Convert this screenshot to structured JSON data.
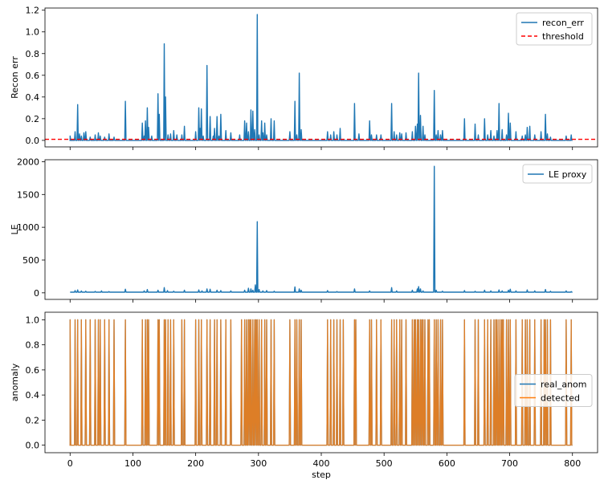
{
  "chart_data": [
    {
      "type": "line",
      "ylabel": "Recon err",
      "xlabel": "",
      "xlim": [
        -40,
        840
      ],
      "ylim": [
        -0.06,
        1.22
      ],
      "yticks": [
        0.0,
        0.2,
        0.4,
        0.6,
        0.8,
        1.0,
        1.2
      ],
      "ytick_labels": [
        "0.0",
        "0.2",
        "0.4",
        "0.6",
        "0.8",
        "1.0",
        "1.2"
      ],
      "legend_position": "top-right",
      "series": [
        {
          "name": "recon_err",
          "color": "#1f77b4",
          "style": "solid",
          "baseline": 0.0,
          "spikes": [
            [
              0,
              0.04
            ],
            [
              8,
              0.08
            ],
            [
              12,
              0.33
            ],
            [
              15,
              0.06
            ],
            [
              18,
              0.04
            ],
            [
              22,
              0.07
            ],
            [
              25,
              0.08
            ],
            [
              32,
              0.03
            ],
            [
              40,
              0.05
            ],
            [
              45,
              0.07
            ],
            [
              48,
              0.04
            ],
            [
              55,
              0.03
            ],
            [
              62,
              0.06
            ],
            [
              70,
              0.03
            ],
            [
              88,
              0.36
            ],
            [
              115,
              0.16
            ],
            [
              118,
              0.04
            ],
            [
              120,
              0.18
            ],
            [
              123,
              0.3
            ],
            [
              125,
              0.12
            ],
            [
              130,
              0.04
            ],
            [
              140,
              0.43
            ],
            [
              142,
              0.24
            ],
            [
              150,
              0.89
            ],
            [
              152,
              0.4
            ],
            [
              156,
              0.05
            ],
            [
              160,
              0.06
            ],
            [
              165,
              0.09
            ],
            [
              170,
              0.05
            ],
            [
              178,
              0.05
            ],
            [
              182,
              0.13
            ],
            [
              200,
              0.08
            ],
            [
              205,
              0.3
            ],
            [
              207,
              0.11
            ],
            [
              209,
              0.29
            ],
            [
              212,
              0.04
            ],
            [
              218,
              0.69
            ],
            [
              223,
              0.22
            ],
            [
              228,
              0.04
            ],
            [
              230,
              0.11
            ],
            [
              234,
              0.22
            ],
            [
              237,
              0.04
            ],
            [
              240,
              0.24
            ],
            [
              248,
              0.09
            ],
            [
              256,
              0.07
            ],
            [
              270,
              0.05
            ],
            [
              278,
              0.18
            ],
            [
              281,
              0.16
            ],
            [
              284,
              0.08
            ],
            [
              288,
              0.28
            ],
            [
              291,
              0.27
            ],
            [
              294,
              0.1
            ],
            [
              298,
              1.16
            ],
            [
              301,
              0.05
            ],
            [
              305,
              0.18
            ],
            [
              307,
              0.07
            ],
            [
              310,
              0.16
            ],
            [
              313,
              0.05
            ],
            [
              320,
              0.2
            ],
            [
              325,
              0.18
            ],
            [
              350,
              0.08
            ],
            [
              358,
              0.36
            ],
            [
              361,
              0.05
            ],
            [
              365,
              0.62
            ],
            [
              368,
              0.1
            ],
            [
              410,
              0.08
            ],
            [
              415,
              0.05
            ],
            [
              420,
              0.08
            ],
            [
              425,
              0.05
            ],
            [
              430,
              0.11
            ],
            [
              453,
              0.34
            ],
            [
              460,
              0.06
            ],
            [
              477,
              0.18
            ],
            [
              480,
              0.05
            ],
            [
              488,
              0.05
            ],
            [
              495,
              0.05
            ],
            [
              512,
              0.34
            ],
            [
              516,
              0.08
            ],
            [
              520,
              0.05
            ],
            [
              525,
              0.07
            ],
            [
              528,
              0.06
            ],
            [
              535,
              0.07
            ],
            [
              545,
              0.08
            ],
            [
              550,
              0.13
            ],
            [
              553,
              0.15
            ],
            [
              555,
              0.62
            ],
            [
              558,
              0.23
            ],
            [
              562,
              0.13
            ],
            [
              565,
              0.05
            ],
            [
              580,
              0.46
            ],
            [
              583,
              0.05
            ],
            [
              586,
              0.09
            ],
            [
              590,
              0.05
            ],
            [
              593,
              0.09
            ],
            [
              628,
              0.2
            ],
            [
              645,
              0.15
            ],
            [
              650,
              0.05
            ],
            [
              660,
              0.2
            ],
            [
              665,
              0.05
            ],
            [
              670,
              0.09
            ],
            [
              675,
              0.04
            ],
            [
              680,
              0.09
            ],
            [
              683,
              0.34
            ],
            [
              688,
              0.1
            ],
            [
              695,
              0.05
            ],
            [
              698,
              0.25
            ],
            [
              701,
              0.16
            ],
            [
              710,
              0.08
            ],
            [
              720,
              0.04
            ],
            [
              725,
              0.05
            ],
            [
              728,
              0.12
            ],
            [
              732,
              0.13
            ],
            [
              740,
              0.05
            ],
            [
              750,
              0.08
            ],
            [
              757,
              0.24
            ],
            [
              760,
              0.06
            ],
            [
              765,
              0.03
            ],
            [
              790,
              0.04
            ],
            [
              798,
              0.05
            ]
          ]
        },
        {
          "name": "threshold",
          "color": "#ff0000",
          "style": "dashed",
          "value": 0.01
        }
      ]
    },
    {
      "type": "line",
      "ylabel": "LE",
      "xlabel": "",
      "xlim": [
        -40,
        840
      ],
      "ylim": [
        -100,
        2030
      ],
      "yticks": [
        0,
        500,
        1000,
        1500,
        2000
      ],
      "ytick_labels": [
        "0",
        "500",
        "1000",
        "1500",
        "2000"
      ],
      "legend_position": "top-right",
      "series": [
        {
          "name": "LE proxy",
          "color": "#1f77b4",
          "style": "solid",
          "baseline": 10,
          "spikes": [
            [
              8,
              35
            ],
            [
              12,
              45
            ],
            [
              18,
              28
            ],
            [
              25,
              25
            ],
            [
              40,
              22
            ],
            [
              50,
              30
            ],
            [
              62,
              20
            ],
            [
              88,
              55
            ],
            [
              118,
              30
            ],
            [
              123,
              50
            ],
            [
              140,
              40
            ],
            [
              150,
              80
            ],
            [
              155,
              35
            ],
            [
              165,
              25
            ],
            [
              182,
              40
            ],
            [
              205,
              45
            ],
            [
              210,
              30
            ],
            [
              218,
              60
            ],
            [
              223,
              55
            ],
            [
              234,
              40
            ],
            [
              240,
              35
            ],
            [
              256,
              30
            ],
            [
              278,
              40
            ],
            [
              284,
              70
            ],
            [
              288,
              60
            ],
            [
              291,
              40
            ],
            [
              295,
              120
            ],
            [
              298,
              1085
            ],
            [
              301,
              50
            ],
            [
              307,
              30
            ],
            [
              313,
              35
            ],
            [
              325,
              25
            ],
            [
              358,
              90
            ],
            [
              365,
              60
            ],
            [
              368,
              40
            ],
            [
              410,
              35
            ],
            [
              425,
              20
            ],
            [
              453,
              60
            ],
            [
              477,
              30
            ],
            [
              512,
              80
            ],
            [
              520,
              30
            ],
            [
              545,
              40
            ],
            [
              553,
              60
            ],
            [
              555,
              95
            ],
            [
              558,
              60
            ],
            [
              562,
              30
            ],
            [
              580,
              1930
            ],
            [
              583,
              40
            ],
            [
              593,
              25
            ],
            [
              628,
              35
            ],
            [
              645,
              25
            ],
            [
              660,
              40
            ],
            [
              670,
              30
            ],
            [
              683,
              45
            ],
            [
              688,
              30
            ],
            [
              698,
              40
            ],
            [
              701,
              55
            ],
            [
              710,
              30
            ],
            [
              728,
              45
            ],
            [
              740,
              30
            ],
            [
              757,
              50
            ],
            [
              765,
              25
            ],
            [
              790,
              30
            ],
            [
              798,
              20
            ]
          ]
        }
      ]
    },
    {
      "type": "line",
      "ylabel": "anomaly",
      "xlabel": "step",
      "xlim": [
        -40,
        840
      ],
      "ylim": [
        -0.06,
        1.06
      ],
      "yticks": [
        0.0,
        0.2,
        0.4,
        0.6,
        0.8,
        1.0
      ],
      "ytick_labels": [
        "0.0",
        "0.2",
        "0.4",
        "0.6",
        "0.8",
        "1.0"
      ],
      "xticks": [
        0,
        100,
        200,
        300,
        400,
        500,
        600,
        700,
        800
      ],
      "xtick_labels": [
        "0",
        "100",
        "200",
        "300",
        "400",
        "500",
        "600",
        "700",
        "800"
      ],
      "legend_position": "center-right",
      "series": [
        {
          "name": "real_anom",
          "color": "#1f77b4",
          "style": "solid",
          "high_steps": [
            0,
            8,
            12,
            18,
            25,
            32,
            40,
            45,
            48,
            55,
            62,
            70,
            88,
            115,
            120,
            123,
            125,
            140,
            142,
            150,
            152,
            156,
            160,
            165,
            178,
            182,
            200,
            205,
            209,
            218,
            223,
            230,
            234,
            240,
            248,
            256,
            273,
            278,
            281,
            284,
            286,
            288,
            291,
            294,
            296,
            298,
            301,
            305,
            310,
            313,
            320,
            325,
            350,
            358,
            361,
            365,
            368,
            410,
            415,
            420,
            425,
            430,
            435,
            453,
            455,
            477,
            480,
            488,
            495,
            512,
            516,
            520,
            525,
            528,
            535,
            545,
            548,
            550,
            553,
            555,
            558,
            560,
            562,
            565,
            570,
            572,
            580,
            583,
            586,
            590,
            593,
            628,
            645,
            650,
            660,
            665,
            670,
            675,
            678,
            680,
            683,
            686,
            688,
            690,
            695,
            698,
            701,
            710,
            720,
            725,
            728,
            732,
            740,
            750,
            755,
            757,
            760,
            765,
            790,
            798
          ]
        },
        {
          "name": "detected",
          "color": "#ff7f0e",
          "style": "solid",
          "high_steps": [
            0,
            8,
            12,
            18,
            25,
            32,
            40,
            45,
            48,
            55,
            62,
            70,
            88,
            115,
            120,
            123,
            125,
            140,
            142,
            150,
            152,
            156,
            160,
            165,
            178,
            182,
            200,
            205,
            209,
            218,
            223,
            230,
            234,
            240,
            248,
            256,
            273,
            278,
            281,
            284,
            286,
            288,
            291,
            294,
            296,
            298,
            301,
            305,
            310,
            313,
            320,
            325,
            350,
            358,
            361,
            365,
            368,
            410,
            415,
            420,
            425,
            430,
            435,
            453,
            455,
            477,
            480,
            488,
            495,
            512,
            516,
            520,
            525,
            528,
            535,
            545,
            548,
            550,
            553,
            555,
            558,
            560,
            562,
            565,
            570,
            572,
            580,
            583,
            586,
            590,
            593,
            628,
            645,
            650,
            660,
            665,
            670,
            675,
            678,
            680,
            683,
            686,
            688,
            690,
            695,
            698,
            701,
            710,
            720,
            725,
            728,
            732,
            740,
            750,
            755,
            757,
            760,
            765,
            790,
            798
          ]
        }
      ]
    }
  ]
}
